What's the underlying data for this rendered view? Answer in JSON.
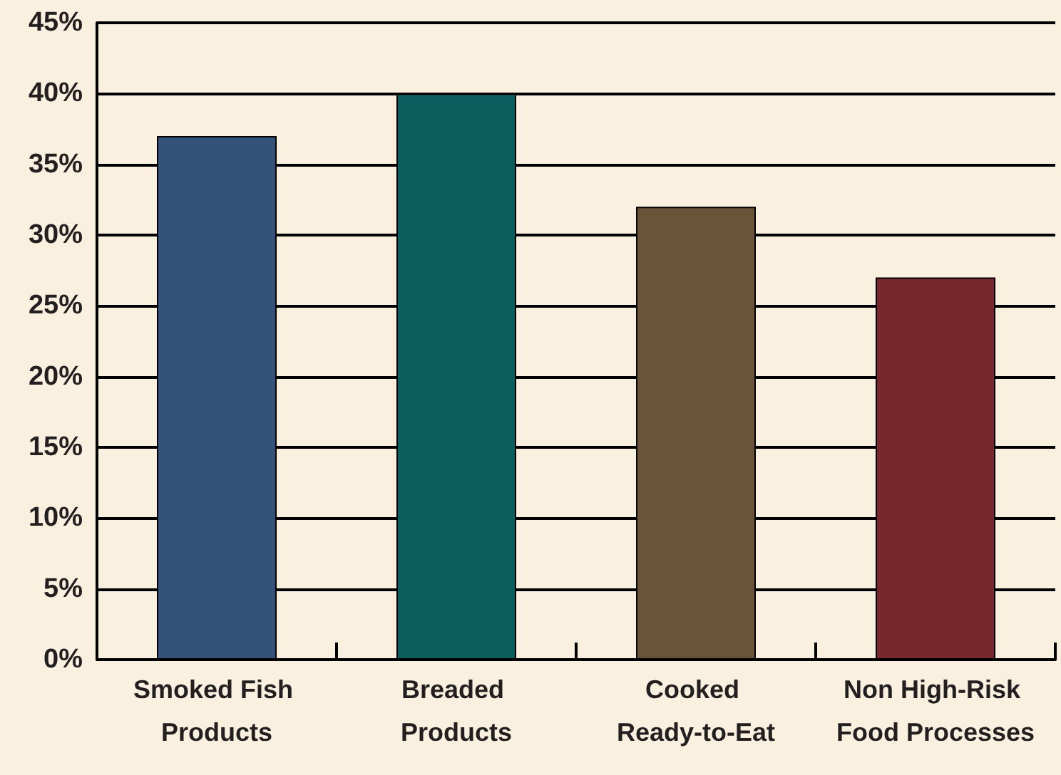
{
  "chart_data": {
    "type": "bar",
    "categories": [
      "Smoked Fish Products",
      "Breaded Products",
      "Cooked Ready-to-Eat",
      "Non High-Risk Food Processes"
    ],
    "values": [
      37,
      40,
      32,
      27
    ],
    "colors": [
      "#34527a",
      "#0a5e5e",
      "#6b533a",
      "#78282d"
    ],
    "ylim": [
      0,
      45
    ],
    "yticks": [
      {
        "value": 0,
        "label": "0%"
      },
      {
        "value": 5,
        "label": "5%"
      },
      {
        "value": 10,
        "label": "10%"
      },
      {
        "value": 15,
        "label": "15%"
      },
      {
        "value": 20,
        "label": "20%"
      },
      {
        "value": 25,
        "label": "25%"
      },
      {
        "value": 30,
        "label": "30%"
      },
      {
        "value": 35,
        "label": "35%"
      },
      {
        "value": 40,
        "label": "40%"
      },
      {
        "value": 45,
        "label": "45%"
      }
    ],
    "grid": "y"
  }
}
